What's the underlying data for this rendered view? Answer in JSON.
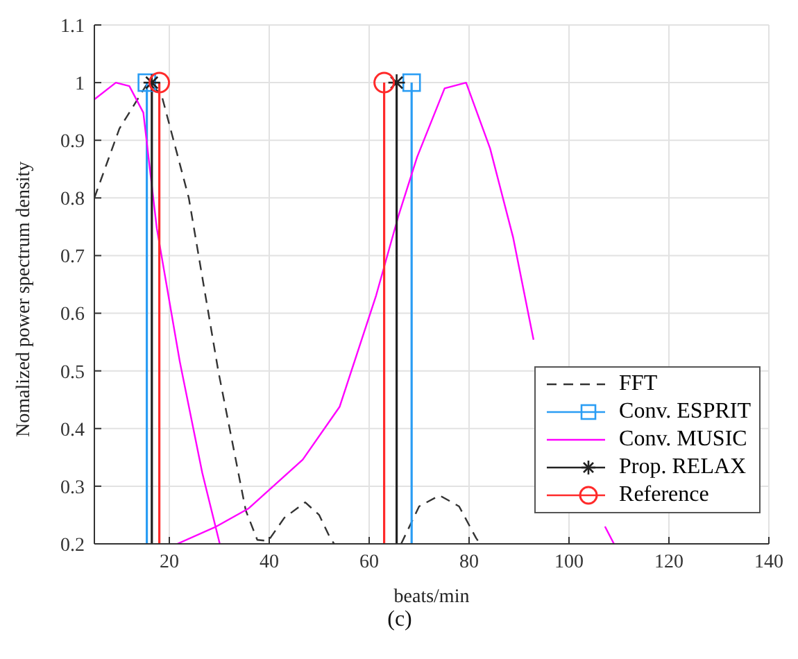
{
  "chart_data": {
    "type": "line",
    "xlabel": "beats/min",
    "ylabel": "Nomalized power spectrum density",
    "annotations": [
      "(c)"
    ],
    "xlim": [
      5,
      140
    ],
    "xticks": [
      20,
      40,
      60,
      80,
      100,
      120,
      140
    ],
    "ylim": [
      0.2,
      1.1
    ],
    "yticks": [
      0.2,
      0.3,
      0.4,
      0.5,
      0.6,
      0.7,
      0.8,
      0.9,
      1,
      1.1
    ],
    "grid": true,
    "legend": "bottom right",
    "series": [
      {
        "name": "FFT",
        "color": "#333333",
        "line_style": "dashed",
        "marker": "none",
        "x": [
          5,
          10,
          15.7,
          18.4,
          23.9,
          29.8,
          35.3,
          37.6,
          39.8,
          43,
          47.2,
          50,
          52.2,
          53,
          60,
          66.4,
          70,
          74.1,
          78,
          81.4,
          82.2
        ],
        "values": [
          0.8,
          0.92,
          1.0,
          0.98,
          0.8,
          0.5,
          0.258,
          0.207,
          0.205,
          0.245,
          0.272,
          0.25,
          0.21,
          0.2,
          null,
          0.2,
          0.265,
          0.284,
          0.265,
          0.21,
          0.2
        ]
      },
      {
        "name": "Conv. ESPRIT",
        "type": "lollipop",
        "color": "#2a9df4",
        "marker": "square",
        "x": [
          15.5,
          68.5
        ],
        "values": [
          1,
          1
        ]
      },
      {
        "name": "Conv. MUSIC",
        "color": "#ff00ff",
        "line_style": "solid",
        "marker": "none",
        "x": [
          5,
          9.3,
          12.0,
          14.8,
          17.5,
          22.1,
          26.6,
          30.1,
          26,
          21.6,
          29.4,
          35.8,
          46.7,
          54.1,
          61.4,
          65.9,
          69.6,
          75.1,
          79.4,
          84.2,
          88.8,
          92.9,
          100,
          107.2,
          109.0
        ],
        "values": [
          0.971,
          1.0,
          0.994,
          0.948,
          0.747,
          0.516,
          0.323,
          0.2,
          null,
          0.2,
          0.23,
          0.261,
          0.346,
          0.438,
          0.631,
          0.77,
          0.871,
          0.99,
          1.0,
          0.886,
          0.732,
          0.554,
          null,
          0.23,
          0.2
        ]
      },
      {
        "name": "Prop. RELAX",
        "type": "lollipop",
        "color": "#222222",
        "marker": "cross",
        "x": [
          16.5,
          65.5
        ],
        "values": [
          1,
          1
        ]
      },
      {
        "name": "Reference",
        "type": "lollipop",
        "color": "#ff2a2a",
        "marker": "circle",
        "x": [
          18,
          63
        ],
        "values": [
          1,
          1
        ]
      }
    ]
  }
}
